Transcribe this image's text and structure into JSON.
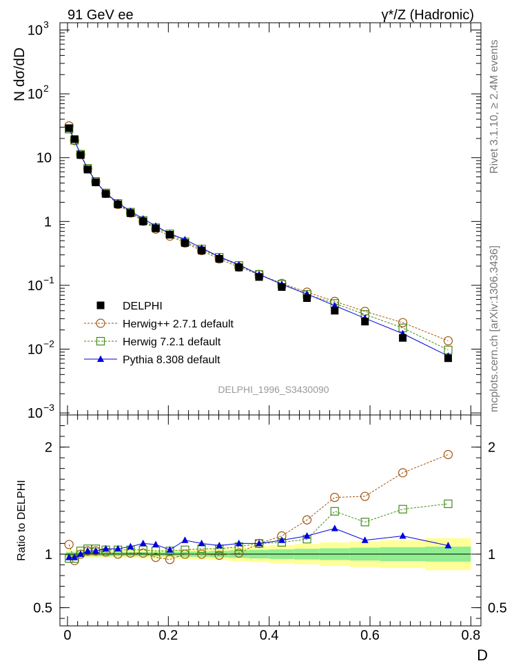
{
  "header": {
    "left_label": "91 GeV ee",
    "right_label": "γ*/Z (Hadronic)"
  },
  "side_labels": {
    "rivet": "Rivet 3.1.10, ≥ 2.4M events",
    "mcplots": "mcplots.cern.ch [arXiv:1306.3436]"
  },
  "analysis_id": "DELPHI_1996_S3430090",
  "chart_data": [
    {
      "type": "scatter",
      "ylabel": "N dσ/dD",
      "xlabel": "D",
      "yscale": "log",
      "ylim": [
        0.00093,
        1300
      ],
      "xlim": [
        -0.015,
        0.82
      ],
      "yticks": [
        {
          "value": 1000,
          "label": "10",
          "exp": "3"
        },
        {
          "value": 100,
          "label": "10",
          "exp": "2"
        },
        {
          "value": 10,
          "label": "10",
          "exp": ""
        },
        {
          "value": 1,
          "label": "1",
          "exp": ""
        },
        {
          "value": 0.1,
          "label": "10",
          "exp": "−1"
        },
        {
          "value": 0.01,
          "label": "10",
          "exp": "−2"
        },
        {
          "value": 0.001,
          "label": "10",
          "exp": "−3"
        }
      ],
      "legend_position": "bottom-left",
      "x": [
        0.003,
        0.014,
        0.026,
        0.04,
        0.056,
        0.076,
        0.1,
        0.125,
        0.15,
        0.175,
        0.203,
        0.233,
        0.266,
        0.301,
        0.34,
        0.38,
        0.425,
        0.475,
        0.53,
        0.59,
        0.665,
        0.755
      ],
      "series": [
        {
          "name": "DELPHI",
          "marker": "filled-square",
          "color": "#000000",
          "values": [
            29,
            19.5,
            11,
            6.5,
            4.1,
            2.7,
            1.85,
            1.35,
            1.0,
            0.78,
            0.62,
            0.46,
            0.35,
            0.26,
            0.19,
            0.135,
            0.094,
            0.063,
            0.04,
            0.027,
            0.015,
            0.0072
          ]
        },
        {
          "name": "Herwig++ 2.7.1 default",
          "marker": "open-circle",
          "color": "#a0520c",
          "values": [
            31.5,
            18.5,
            11.2,
            6.7,
            4.2,
            2.75,
            1.85,
            1.36,
            1.01,
            0.76,
            0.59,
            0.46,
            0.35,
            0.258,
            0.193,
            0.148,
            0.107,
            0.078,
            0.056,
            0.039,
            0.026,
            0.0135
          ]
        },
        {
          "name": "Herwig 7.2.1 default",
          "marker": "open-square",
          "color": "#3e8a14",
          "values": [
            28,
            18.7,
            11.3,
            6.8,
            4.25,
            2.8,
            1.92,
            1.4,
            1.04,
            0.8,
            0.64,
            0.48,
            0.37,
            0.275,
            0.205,
            0.148,
            0.104,
            0.072,
            0.052,
            0.035,
            0.0215,
            0.0097
          ]
        },
        {
          "name": "Pythia 8.308 default",
          "marker": "filled-triangle",
          "color": "#0000dd",
          "values": [
            28.5,
            19.0,
            11.0,
            6.7,
            4.2,
            2.8,
            1.95,
            1.45,
            1.1,
            0.85,
            0.645,
            0.52,
            0.385,
            0.28,
            0.21,
            0.148,
            0.104,
            0.073,
            0.048,
            0.0305,
            0.0175,
            0.0078
          ]
        }
      ]
    },
    {
      "type": "scatter",
      "ylabel": "Ratio to DELPHI",
      "xlabel": "D",
      "ylim": [
        0.33,
        2.3
      ],
      "xlim": [
        -0.015,
        0.82
      ],
      "yticks": [
        0.5,
        1,
        2
      ],
      "xticks": [
        0,
        0.2,
        0.4,
        0.6,
        0.8
      ],
      "band_edges": [
        -0.003,
        0.008,
        0.02,
        0.033,
        0.048,
        0.066,
        0.088,
        0.113,
        0.138,
        0.163,
        0.189,
        0.218,
        0.25,
        0.283,
        0.32,
        0.36,
        0.4,
        0.45,
        0.5,
        0.56,
        0.62,
        0.71,
        0.8
      ],
      "band_inner": [
        0.02,
        0.02,
        0.02,
        0.02,
        0.02,
        0.02,
        0.02,
        0.02,
        0.02,
        0.02,
        0.02,
        0.025,
        0.025,
        0.03,
        0.035,
        0.04,
        0.045,
        0.05,
        0.055,
        0.06,
        0.065,
        0.07
      ],
      "band_outer": [
        0.035,
        0.035,
        0.035,
        0.035,
        0.035,
        0.035,
        0.035,
        0.035,
        0.04,
        0.04,
        0.04,
        0.045,
        0.05,
        0.055,
        0.065,
        0.075,
        0.085,
        0.095,
        0.11,
        0.12,
        0.13,
        0.15
      ],
      "band_colors": {
        "inner": "#90ee90",
        "outer": "#ffff99"
      },
      "series": [
        {
          "name": "Herwig++ 2.7.1 default",
          "marker": "open-circle",
          "color": "#a0520c",
          "values": [
            1.09,
            0.94,
            1.0,
            1.03,
            1.03,
            1.02,
            1.0,
            1.01,
            1.01,
            0.97,
            0.95,
            1.0,
            1.0,
            0.99,
            1.01,
            1.1,
            1.17,
            1.32,
            1.53,
            1.54,
            1.76,
            1.93
          ]
        },
        {
          "name": "Herwig 7.2.1 default",
          "marker": "open-square",
          "color": "#3e8a14",
          "values": [
            0.96,
            0.96,
            1.03,
            1.05,
            1.05,
            1.04,
            1.04,
            1.04,
            1.04,
            1.03,
            1.03,
            1.04,
            1.05,
            1.05,
            1.07,
            1.1,
            1.11,
            1.14,
            1.4,
            1.3,
            1.42,
            1.47
          ]
        },
        {
          "name": "Pythia 8.308 default",
          "marker": "filled-triangle",
          "color": "#0000dd",
          "values": [
            0.97,
            0.97,
            1.0,
            1.03,
            1.03,
            1.05,
            1.05,
            1.07,
            1.1,
            1.09,
            1.04,
            1.13,
            1.1,
            1.08,
            1.1,
            1.1,
            1.13,
            1.17,
            1.24,
            1.13,
            1.17,
            1.08
          ]
        }
      ]
    }
  ]
}
